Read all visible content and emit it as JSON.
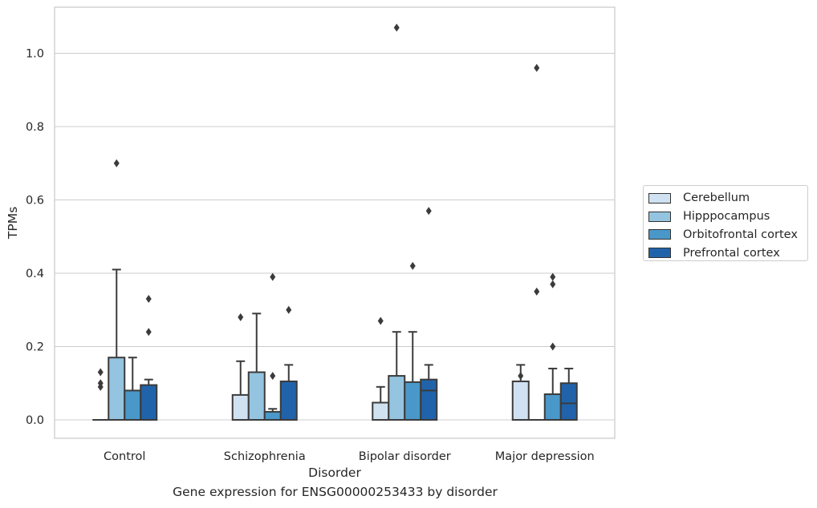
{
  "chart_data": {
    "type": "boxplot",
    "xlabel": "Disorder",
    "ylabel": "TPMs",
    "caption": "Gene expression for ENSG00000253433 by disorder",
    "ylim": [
      -0.05,
      1.13
    ],
    "yticks": [
      0.0,
      0.2,
      0.4,
      0.6,
      0.8,
      1.0
    ],
    "ytick_labels": [
      "0.0",
      "0.2",
      "0.4",
      "0.6",
      "0.8",
      "1.0"
    ],
    "grid": "horizontal",
    "legend_position": "right",
    "categories": [
      "Control",
      "Schizophrenia",
      "Bipolar disorder",
      "Major depression"
    ],
    "series": [
      {
        "name": "Cerebellum",
        "color": "#d0e1f2",
        "boxes": [
          {
            "min": 0.0,
            "q1": 0.0,
            "median": 0.0,
            "q3": 0.0,
            "max": 0.0,
            "fliers": [
              0.09,
              0.1,
              0.13
            ]
          },
          {
            "min": 0.0,
            "q1": 0.0,
            "median": 0.0,
            "q3": 0.068,
            "max": 0.16,
            "fliers": [
              0.28
            ]
          },
          {
            "min": 0.0,
            "q1": 0.0,
            "median": 0.0,
            "q3": 0.047,
            "max": 0.09,
            "fliers": [
              0.27
            ]
          },
          {
            "min": 0.0,
            "q1": 0.0,
            "median": 0.0,
            "q3": 0.105,
            "max": 0.15,
            "fliers": [
              0.12
            ]
          }
        ]
      },
      {
        "name": "Hipppocampus",
        "color": "#94c4df",
        "boxes": [
          {
            "min": 0.0,
            "q1": 0.0,
            "median": 0.0,
            "q3": 0.17,
            "max": 0.41,
            "fliers": [
              0.7
            ]
          },
          {
            "min": 0.0,
            "q1": 0.0,
            "median": 0.0,
            "q3": 0.13,
            "max": 0.29,
            "fliers": []
          },
          {
            "min": 0.0,
            "q1": 0.0,
            "median": 0.0,
            "q3": 0.12,
            "max": 0.24,
            "fliers": [
              1.07
            ]
          },
          {
            "min": 0.0,
            "q1": 0.0,
            "median": 0.0,
            "q3": 0.0,
            "max": 0.0,
            "fliers": [
              0.96,
              0.35
            ]
          }
        ]
      },
      {
        "name": "Orbitofrontal cortex",
        "color": "#4a98c9",
        "boxes": [
          {
            "min": 0.0,
            "q1": 0.0,
            "median": 0.0,
            "q3": 0.08,
            "max": 0.17,
            "fliers": []
          },
          {
            "min": 0.0,
            "q1": 0.0,
            "median": 0.0,
            "q3": 0.022,
            "max": 0.03,
            "fliers": [
              0.12,
              0.39
            ]
          },
          {
            "min": 0.0,
            "q1": 0.0,
            "median": 0.0,
            "q3": 0.103,
            "max": 0.24,
            "fliers": [
              0.42
            ]
          },
          {
            "min": 0.0,
            "q1": 0.0,
            "median": 0.0,
            "q3": 0.07,
            "max": 0.14,
            "fliers": [
              0.2,
              0.37,
              0.39
            ]
          }
        ]
      },
      {
        "name": "Prefrontal cortex",
        "color": "#2163aa",
        "boxes": [
          {
            "min": 0.0,
            "q1": 0.0,
            "median": 0.0,
            "q3": 0.095,
            "max": 0.11,
            "fliers": [
              0.24,
              0.33
            ]
          },
          {
            "min": 0.0,
            "q1": 0.0,
            "median": 0.0,
            "q3": 0.105,
            "max": 0.15,
            "fliers": [
              0.3
            ]
          },
          {
            "min": 0.0,
            "q1": 0.0,
            "median": 0.08,
            "q3": 0.11,
            "max": 0.15,
            "fliers": [
              0.57
            ]
          },
          {
            "min": 0.0,
            "q1": 0.0,
            "median": 0.045,
            "q3": 0.1,
            "max": 0.14,
            "fliers": []
          }
        ]
      }
    ]
  }
}
